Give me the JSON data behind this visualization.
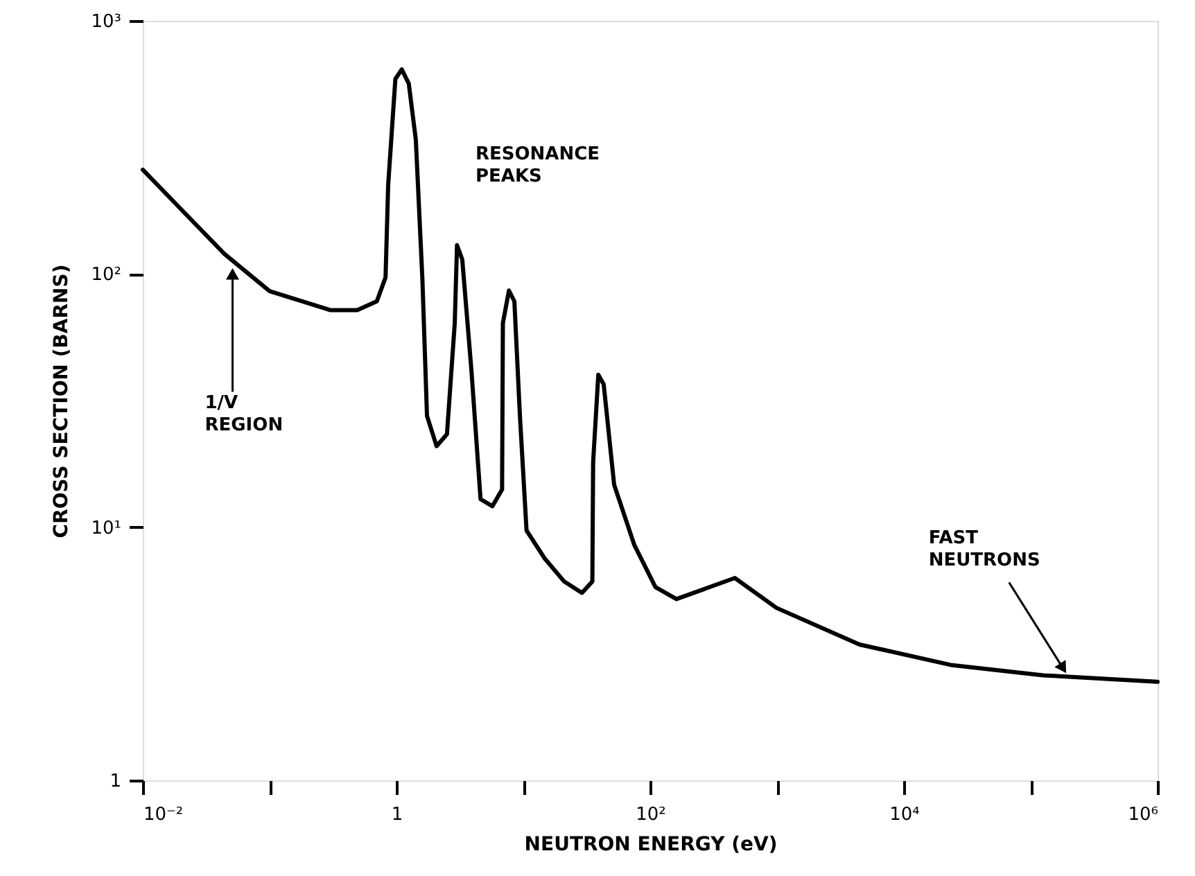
{
  "chart_data": {
    "type": "line",
    "xlabel": "NEUTRON ENERGY (eV)",
    "ylabel": "CROSS SECTION (BARNS)",
    "log": "xy",
    "grid": false,
    "marker": "none",
    "line_style": "solid",
    "xlim": [
      0.01,
      1000000
    ],
    "ylim": [
      1,
      1000
    ],
    "xticks": [
      {
        "value": 0.01,
        "label": "10⁻²"
      },
      {
        "value": 0.1,
        "label": null
      },
      {
        "value": 1,
        "label": "1"
      },
      {
        "value": 10,
        "label": null
      },
      {
        "value": 100,
        "label": "10²"
      },
      {
        "value": 1000,
        "label": null
      },
      {
        "value": 10000,
        "label": "10⁴"
      },
      {
        "value": 100000,
        "label": null
      },
      {
        "value": 1000000,
        "label": "10⁶"
      }
    ],
    "yticks": [
      1,
      {
        "value": 10,
        "label": "10¹"
      },
      {
        "value": 100,
        "label": "10²"
      },
      {
        "value": 1000,
        "label": "10³"
      }
    ],
    "x": [
      0.01,
      0.044,
      0.1,
      0.3,
      0.49,
      0.7,
      0.82,
      0.86,
      0.98,
      1.1,
      1.25,
      1.42,
      1.6,
      1.74,
      2.07,
      2.5,
      2.88,
      3.0,
      3.3,
      3.9,
      4.6,
      5.7,
      6.8,
      6.9,
      7.7,
      8.5,
      9.4,
      10.6,
      14.8,
      21,
      29,
      35,
      35.5,
      39,
      43,
      52,
      75,
      110,
      161,
      465,
      990,
      4470,
      24000,
      126000,
      1000000
    ],
    "series": [
      {
        "color": "#000000",
        "values": [
          258,
          120,
          85.5,
          72,
          72,
          78,
          97,
          225,
          589,
          643,
          565,
          340,
          96,
          27.5,
          20.9,
          23.3,
          64,
          130,
          114,
          41.5,
          12.9,
          12.1,
          14.1,
          64,
          86,
          78,
          27.5,
          9.7,
          7.5,
          6.1,
          5.5,
          6.1,
          18,
          40,
          36.7,
          14.7,
          8.5,
          5.8,
          5.2,
          6.3,
          4.8,
          3.44,
          2.85,
          2.6,
          2.45
        ]
      }
    ],
    "annotations": [
      "RESONANCE\nPEAKS",
      {
        "text": "1/V\nREGION",
        "x": 0.051,
        "y": 100
      },
      {
        "text": "FAST\nNEUTRONS",
        "x": 180000,
        "y": 2.77
      }
    ]
  }
}
